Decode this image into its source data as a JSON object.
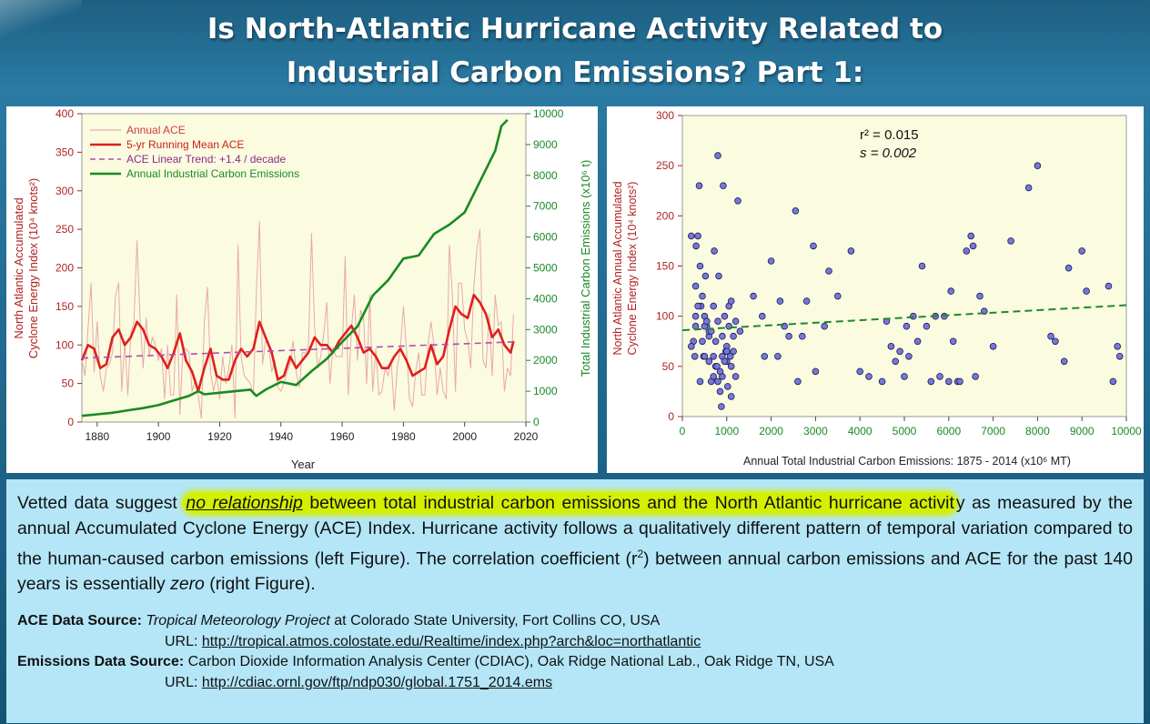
{
  "header": {
    "title_line1": "Is North-Atlantic Hurricane Activity Related to",
    "title_line2": "Industrial Carbon Emissions? Part 1:"
  },
  "chart_data": [
    {
      "type": "line",
      "xlabel": "Year",
      "ylabel_left_line1": "North Atlantic Accumulated",
      "ylabel_left_line2": "Cyclone Energy Index (10⁴ knots²)",
      "ylabel_right": "Total Industrial Carbon Emissions (x10⁶ t)",
      "xlim": [
        1875,
        2020
      ],
      "ylim_left": [
        0,
        400
      ],
      "ylim_right": [
        0,
        10000
      ],
      "x_ticks": [
        1880,
        1900,
        1920,
        1940,
        1960,
        1980,
        2000,
        2020
      ],
      "y_ticks_left": [
        0,
        50,
        100,
        150,
        200,
        250,
        300,
        350,
        400
      ],
      "y_ticks_right": [
        0,
        1000,
        2000,
        3000,
        4000,
        5000,
        6000,
        7000,
        8000,
        9000,
        10000
      ],
      "colors": {
        "annual": "#e7a9ab",
        "running": "#e01e1e",
        "trend": "#b04fb2",
        "emissions": "#198a24"
      },
      "series": [
        {
          "name": "Annual ACE",
          "axis": "left",
          "style": "thin",
          "x": [
            1875,
            1876,
            1877,
            1878,
            1879,
            1880,
            1881,
            1882,
            1883,
            1884,
            1885,
            1886,
            1887,
            1888,
            1889,
            1890,
            1891,
            1892,
            1893,
            1894,
            1895,
            1896,
            1897,
            1898,
            1899,
            1900,
            1901,
            1902,
            1903,
            1904,
            1905,
            1906,
            1907,
            1908,
            1909,
            1910,
            1911,
            1912,
            1913,
            1914,
            1915,
            1916,
            1917,
            1918,
            1919,
            1920,
            1921,
            1922,
            1923,
            1924,
            1925,
            1926,
            1927,
            1928,
            1929,
            1930,
            1931,
            1932,
            1933,
            1934,
            1935,
            1936,
            1937,
            1938,
            1939,
            1940,
            1941,
            1942,
            1943,
            1944,
            1945,
            1946,
            1947,
            1948,
            1949,
            1950,
            1951,
            1952,
            1953,
            1954,
            1955,
            1956,
            1957,
            1958,
            1959,
            1960,
            1961,
            1962,
            1963,
            1964,
            1965,
            1966,
            1967,
            1968,
            1969,
            1970,
            1971,
            1972,
            1973,
            1974,
            1975,
            1976,
            1977,
            1978,
            1979,
            1980,
            1981,
            1982,
            1983,
            1984,
            1985,
            1986,
            1987,
            1988,
            1989,
            1990,
            1991,
            1992,
            1993,
            1994,
            1995,
            1996,
            1997,
            1998,
            1999,
            2000,
            2001,
            2002,
            2003,
            2004,
            2005,
            2006,
            2007,
            2008,
            2009,
            2010,
            2011,
            2012,
            2013,
            2014,
            2015,
            2016
          ],
          "y": [
            80,
            60,
            120,
            180,
            65,
            130,
            60,
            40,
            70,
            75,
            90,
            165,
            180,
            40,
            105,
            35,
            115,
            130,
            235,
            135,
            70,
            135,
            85,
            110,
            100,
            80,
            95,
            30,
            100,
            35,
            35,
            165,
            10,
            95,
            95,
            90,
            40,
            55,
            35,
            5,
            130,
            175,
            65,
            40,
            60,
            30,
            85,
            50,
            70,
            100,
            5,
            230,
            85,
            60,
            55,
            50,
            35,
            170,
            260,
            75,
            105,
            100,
            65,
            80,
            45,
            40,
            50,
            65,
            75,
            105,
            65,
            45,
            90,
            90,
            95,
            245,
            125,
            70,
            85,
            115,
            155,
            50,
            95,
            85,
            85,
            85,
            215,
            35,
            120,
            165,
            80,
            145,
            135,
            50,
            165,
            40,
            95,
            35,
            40,
            70,
            60,
            80,
            15,
            70,
            95,
            150,
            95,
            30,
            20,
            65,
            90,
            35,
            35,
            100,
            130,
            100,
            35,
            70,
            40,
            30,
            230,
            165,
            40,
            180,
            180,
            120,
            105,
            70,
            175,
            225,
            250,
            80,
            70,
            140,
            60,
            165,
            125,
            130,
            40,
            70,
            60,
            140
          ]
        },
        {
          "name": "5-yr Running Mean ACE",
          "axis": "left",
          "style": "thick",
          "x": [
            1875,
            1877,
            1879,
            1881,
            1883,
            1885,
            1887,
            1889,
            1891,
            1893,
            1895,
            1897,
            1899,
            1901,
            1903,
            1905,
            1907,
            1909,
            1911,
            1913,
            1915,
            1917,
            1919,
            1921,
            1923,
            1925,
            1927,
            1929,
            1931,
            1933,
            1935,
            1937,
            1939,
            1941,
            1943,
            1945,
            1947,
            1949,
            1951,
            1953,
            1955,
            1957,
            1959,
            1961,
            1963,
            1965,
            1967,
            1969,
            1971,
            1973,
            1975,
            1977,
            1979,
            1981,
            1983,
            1985,
            1987,
            1989,
            1991,
            1993,
            1995,
            1997,
            1999,
            2001,
            2003,
            2005,
            2007,
            2009,
            2011,
            2013,
            2015,
            2016
          ],
          "y": [
            80,
            100,
            95,
            70,
            75,
            110,
            120,
            100,
            110,
            130,
            120,
            100,
            95,
            85,
            70,
            90,
            115,
            80,
            65,
            40,
            70,
            95,
            60,
            55,
            55,
            80,
            95,
            85,
            95,
            130,
            110,
            90,
            55,
            60,
            85,
            70,
            80,
            90,
            110,
            100,
            100,
            90,
            105,
            115,
            125,
            110,
            90,
            95,
            85,
            70,
            70,
            85,
            95,
            80,
            60,
            65,
            70,
            100,
            75,
            85,
            120,
            150,
            140,
            135,
            165,
            155,
            140,
            110,
            120,
            100,
            90,
            105
          ]
        },
        {
          "name": "ACE Linear Trend: +1.4 / decade",
          "axis": "left",
          "style": "dashed",
          "x": [
            1875,
            2016
          ],
          "y": [
            83,
            104
          ]
        },
        {
          "name": "Annual Industrial Carbon Emissions",
          "axis": "right",
          "style": "thick",
          "x": [
            1875,
            1880,
            1885,
            1890,
            1895,
            1900,
            1905,
            1910,
            1913,
            1915,
            1920,
            1925,
            1930,
            1932,
            1935,
            1940,
            1945,
            1950,
            1955,
            1960,
            1965,
            1970,
            1975,
            1980,
            1985,
            1990,
            1995,
            2000,
            2005,
            2010,
            2012,
            2014
          ],
          "y": [
            200,
            250,
            300,
            380,
            450,
            550,
            700,
            850,
            1000,
            900,
            950,
            1000,
            1050,
            850,
            1050,
            1300,
            1200,
            1650,
            2050,
            2600,
            3100,
            4100,
            4600,
            5300,
            5400,
            6100,
            6400,
            6800,
            7800,
            8800,
            9600,
            9800
          ]
        }
      ]
    },
    {
      "type": "scatter",
      "xlabel": "Annual Total Industrial Carbon Emissions: 1875 - 2014 (x10⁶ MT)",
      "ylabel_line1": "North Atlantic Annual Accumulated",
      "ylabel_line2": "Cyclone Energy Index (10⁴ knots²)",
      "xlim": [
        0,
        10000
      ],
      "ylim": [
        0,
        300
      ],
      "x_ticks": [
        0,
        1000,
        2000,
        3000,
        4000,
        5000,
        6000,
        7000,
        8000,
        9000,
        10000
      ],
      "y_ticks": [
        0,
        50,
        100,
        150,
        200,
        250,
        300
      ],
      "annotation_r2": "r² = 0.015",
      "annotation_s": "s = 0.002",
      "point_color": "#7777d6",
      "trend_color": "#1f8a2b",
      "trend": {
        "x": [
          0,
          10000
        ],
        "y": [
          86,
          111
        ]
      },
      "x": [
        200,
        250,
        280,
        300,
        310,
        350,
        380,
        400,
        420,
        450,
        480,
        500,
        520,
        550,
        600,
        650,
        700,
        720,
        750,
        780,
        800,
        820,
        850,
        880,
        900,
        920,
        950,
        980,
        1000,
        1020,
        1050,
        1080,
        1100,
        1150,
        1200,
        1250,
        1300,
        1600,
        1800,
        1850,
        2000,
        2150,
        2200,
        2300,
        2400,
        2550,
        2600,
        2700,
        2800,
        2950,
        3000,
        3200,
        3300,
        3500,
        3800,
        4000,
        4200,
        4500,
        4600,
        4700,
        4800,
        4900,
        5000,
        5050,
        5100,
        5200,
        5300,
        5400,
        5500,
        5600,
        5700,
        5800,
        5900,
        6000,
        6050,
        6100,
        6200,
        6250,
        6400,
        6500,
        6550,
        6600,
        6700,
        6800,
        7000,
        7400,
        7800,
        8000,
        8300,
        8400,
        8600,
        8700,
        9000,
        9100,
        9600,
        9700,
        9800,
        9850,
        200,
        300,
        400,
        500,
        600,
        700,
        800,
        900,
        1000,
        1100,
        1200,
        350,
        450,
        550,
        650,
        750,
        850,
        950,
        1050,
        1150,
        600,
        800,
        900,
        1000,
        700,
        1100,
        300,
        500
      ],
      "y": [
        180,
        75,
        60,
        130,
        170,
        180,
        230,
        35,
        110,
        75,
        60,
        100,
        140,
        90,
        80,
        35,
        60,
        165,
        50,
        50,
        260,
        140,
        25,
        10,
        40,
        230,
        100,
        65,
        55,
        30,
        90,
        60,
        50,
        80,
        95,
        215,
        85,
        120,
        100,
        60,
        155,
        60,
        115,
        90,
        80,
        205,
        35,
        80,
        115,
        170,
        45,
        90,
        145,
        120,
        165,
        45,
        40,
        35,
        95,
        70,
        55,
        65,
        40,
        90,
        60,
        100,
        75,
        150,
        90,
        35,
        100,
        40,
        100,
        35,
        125,
        75,
        35,
        35,
        165,
        180,
        170,
        40,
        120,
        105,
        70,
        175,
        228,
        250,
        80,
        75,
        55,
        148,
        165,
        125,
        130,
        35,
        70,
        60,
        70,
        90,
        150,
        90,
        85,
        110,
        95,
        60,
        70,
        20,
        40,
        110,
        120,
        95,
        85,
        75,
        45,
        55,
        110,
        65,
        55,
        35,
        80,
        65,
        40,
        115,
        100,
        60
      ]
    }
  ],
  "body": {
    "para_pre": "Vetted data suggest ",
    "para_em": "no relationship",
    "para_hl_rest": " between total industrial carbon emissions and the North Atlantic hurricane activit",
    "para_mid": "y as measured by the annual Accumulated Cyclone Energy (ACE) Index. Hurricane activity follows a qualitatively different pattern of temporal variation compared to the human-caused carbon emissions (left Figure). The correlation coefficient (r",
    "para_sup": "2",
    "para_post": ") between annual carbon emissions and ACE for the past 140 years is essentially ",
    "para_zero": "zero",
    "para_end": " (right Figure)."
  },
  "sources": {
    "ace_label": "ACE Data Source:",
    "ace_project": "Tropical Meteorology Project",
    "ace_rest": " at Colorado State University, Fort Collins CO, USA",
    "url_label": "URL: ",
    "ace_url": "http://tropical.atmos.colostate.edu/Realtime/index.php?arch&loc=northatlantic",
    "emis_label": "Emissions Data Source:",
    "emis_rest": " Carbon Dioxide Information Analysis Center (CDIAC), Oak Ridge National Lab., Oak Ridge TN, USA",
    "emis_url": "http://cdiac.ornl.gov/ftp/ndp030/global.1751_2014.ems"
  }
}
